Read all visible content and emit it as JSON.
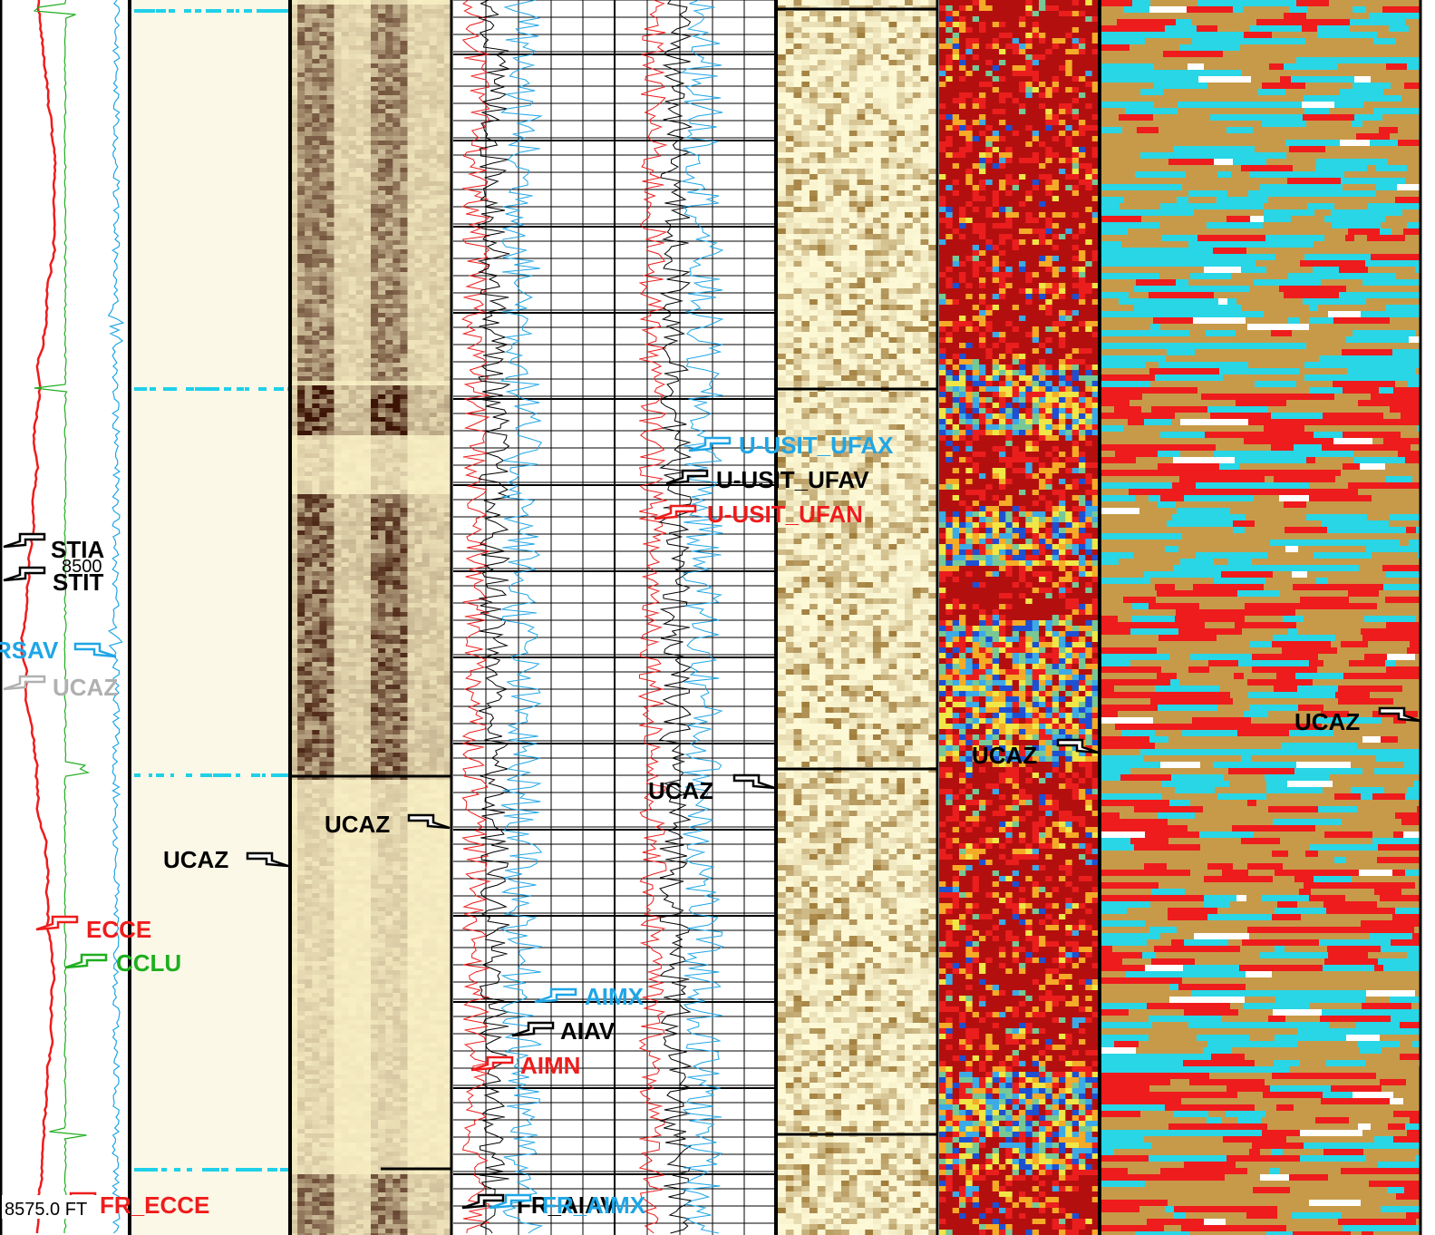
{
  "colors": {
    "red": "#ee1c1c",
    "black": "#000000",
    "cyan_blue": "#1fa6e6",
    "green": "#1fae1f",
    "gray": "#b0b0b0",
    "cream": "#fbf8e8",
    "teal": "#28d6e6",
    "tan": "#c79a4a",
    "dark_red": "#b80f0f"
  },
  "chart_data": {
    "type": "line",
    "title": "",
    "depth_unit": "FT",
    "depth_reference": "8500",
    "depth_footer": "8575.0 FT",
    "curve_labels": [
      {
        "text": "STIA",
        "color": "black"
      },
      {
        "text": "STIT",
        "color": "black"
      },
      {
        "text": "RSAV",
        "color": "cyan_blue"
      },
      {
        "text": "UCAZ",
        "color": "gray"
      },
      {
        "text": "ECCE",
        "color": "red"
      },
      {
        "text": "CCLU",
        "color": "green"
      },
      {
        "text": "FR_ECCE",
        "color": "red"
      },
      {
        "text": "UCAZ",
        "color": "black"
      },
      {
        "text": "UCAZ",
        "color": "black"
      },
      {
        "text": "AIMX",
        "color": "cyan_blue"
      },
      {
        "text": "AIAV",
        "color": "black"
      },
      {
        "text": "AIMN",
        "color": "red"
      },
      {
        "text": "FR_AIAV",
        "color": "black"
      },
      {
        "text": "FR_AIMX",
        "color": "cyan_blue"
      },
      {
        "text": "U-USIT_UFAX",
        "color": "cyan_blue"
      },
      {
        "text": "U-USIT_UFAV",
        "color": "black"
      },
      {
        "text": "U-USIT_UFAN",
        "color": "red"
      },
      {
        "text": "UCAZ",
        "color": "black"
      },
      {
        "text": "UCAZ",
        "color": "black"
      },
      {
        "text": "UCAZ",
        "color": "black"
      }
    ],
    "tracks": [
      "track-1-curves",
      "track-2-cream",
      "track-3-amplitude-image",
      "track-4-curves",
      "track-5-image",
      "track-6-thickness-image",
      "track-7-classification-image"
    ]
  }
}
